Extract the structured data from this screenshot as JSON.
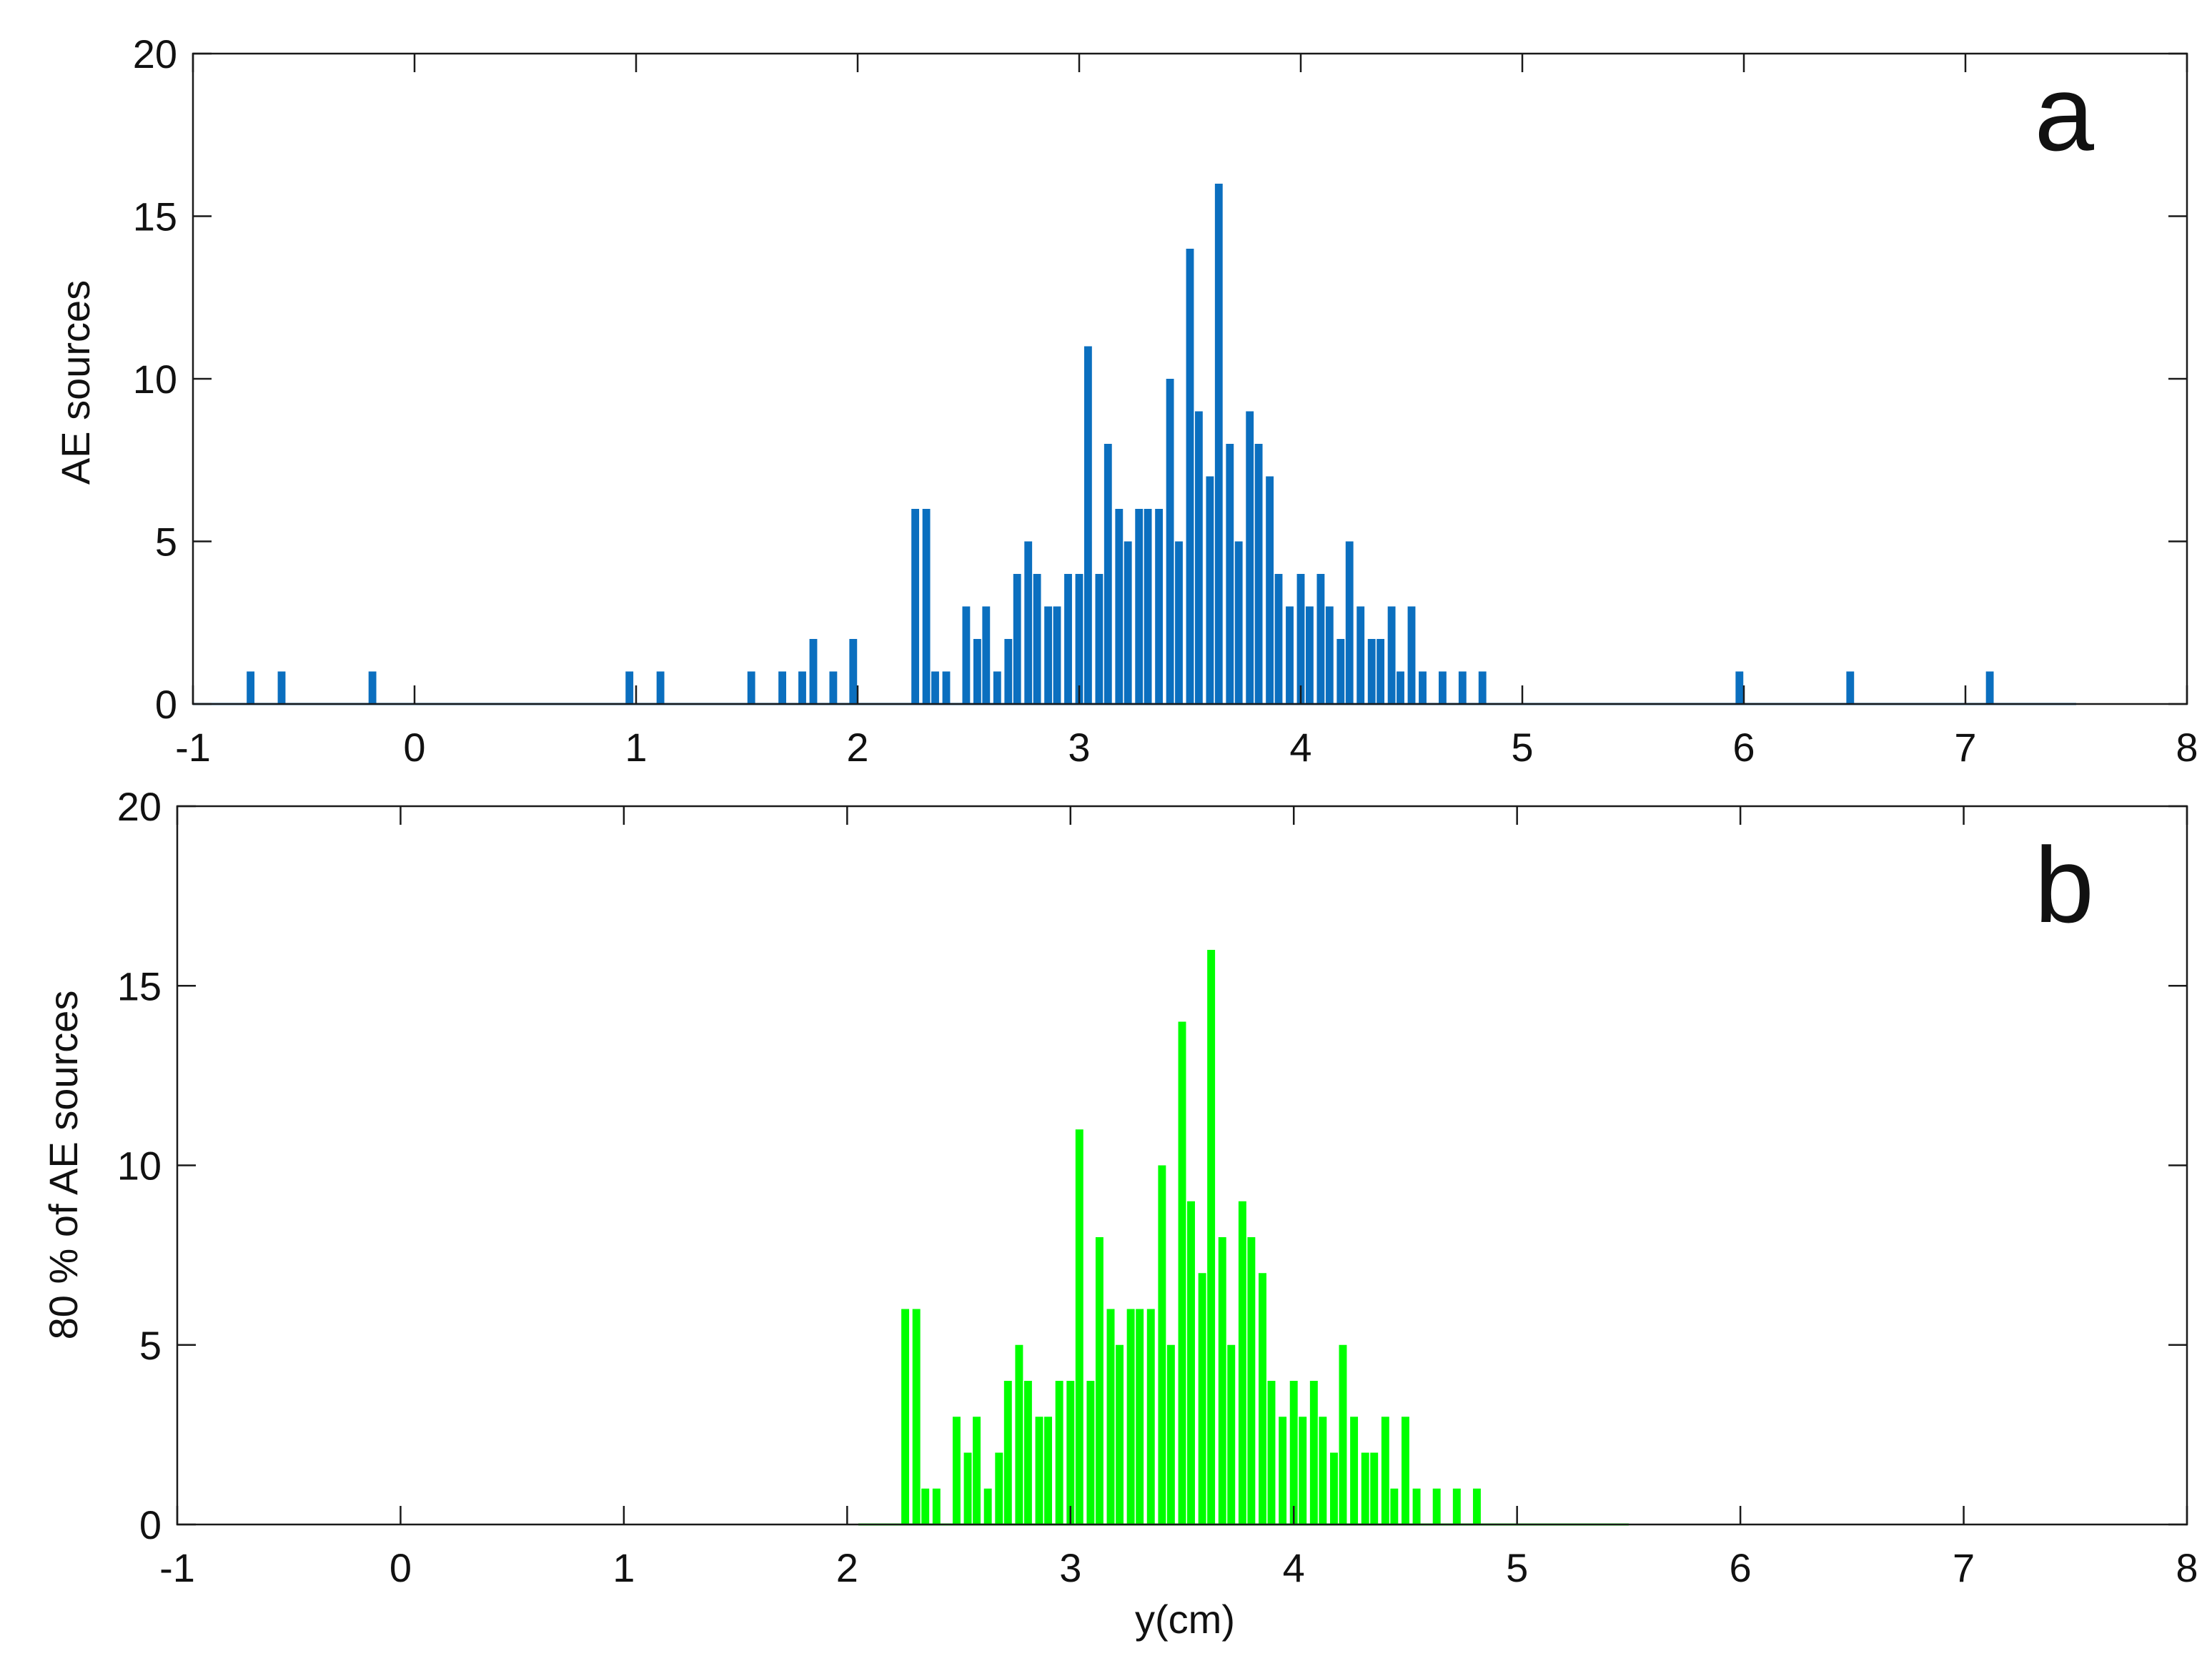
{
  "colors": {
    "panel_a_bars": "#0b6fbf",
    "panel_b_bars": "#00ff00",
    "axes": "#1a1a1a"
  },
  "chart_data": [
    {
      "type": "bar",
      "panel_label": "a",
      "xlabel": "",
      "ylabel": "AE sources",
      "xlim": [
        -1,
        8
      ],
      "ylim": [
        0,
        20
      ],
      "xticks": [
        "-1",
        "0",
        "1",
        "2",
        "3",
        "4",
        "5",
        "6",
        "7",
        "8"
      ],
      "yticks": [
        "0",
        "5",
        "10",
        "15",
        "20"
      ],
      "grid": false,
      "bar_width": 0.035,
      "baseline_range": [
        -1,
        7.5
      ],
      "x": [
        -0.74,
        -0.6,
        -0.19,
        0.97,
        1.11,
        1.52,
        1.66,
        1.75,
        1.8,
        1.89,
        1.98,
        2.26,
        2.31,
        2.35,
        2.4,
        2.49,
        2.54,
        2.58,
        2.63,
        2.68,
        2.72,
        2.77,
        2.81,
        2.86,
        2.9,
        2.95,
        3.0,
        3.04,
        3.09,
        3.13,
        3.18,
        3.22,
        3.27,
        3.31,
        3.36,
        3.41,
        3.45,
        3.5,
        3.54,
        3.59,
        3.63,
        3.68,
        3.72,
        3.77,
        3.81,
        3.86,
        3.9,
        3.95,
        4.0,
        4.04,
        4.09,
        4.13,
        4.18,
        4.22,
        4.27,
        4.32,
        4.36,
        4.41,
        4.45,
        4.5,
        4.55,
        4.64,
        4.73,
        4.82,
        5.98,
        6.48,
        7.11
      ],
      "values": [
        1,
        1,
        1,
        1,
        1,
        1,
        1,
        1,
        2,
        1,
        2,
        6,
        6,
        1,
        1,
        3,
        2,
        3,
        1,
        2,
        4,
        5,
        4,
        3,
        3,
        4,
        4,
        11,
        4,
        8,
        6,
        5,
        6,
        6,
        6,
        10,
        5,
        14,
        9,
        7,
        16,
        8,
        5,
        9,
        8,
        7,
        4,
        3,
        4,
        3,
        4,
        3,
        2,
        5,
        3,
        2,
        2,
        3,
        1,
        3,
        1,
        1,
        1,
        1,
        1,
        1,
        1
      ]
    },
    {
      "type": "bar",
      "panel_label": "b",
      "xlabel": "y(cm)",
      "ylabel": "80 % of AE sources",
      "xlim": [
        -1,
        8
      ],
      "ylim": [
        0,
        20
      ],
      "xticks": [
        "-1",
        "0",
        "1",
        "2",
        "3",
        "4",
        "5",
        "6",
        "7",
        "8"
      ],
      "yticks": [
        "0",
        "5",
        "10",
        "15",
        "20"
      ],
      "grid": false,
      "bar_width": 0.035,
      "baseline_range": [
        2.05,
        5.5
      ],
      "x": [
        2.26,
        2.31,
        2.35,
        2.4,
        2.49,
        2.54,
        2.58,
        2.63,
        2.68,
        2.72,
        2.77,
        2.81,
        2.86,
        2.9,
        2.95,
        3.0,
        3.04,
        3.09,
        3.13,
        3.18,
        3.22,
        3.27,
        3.31,
        3.36,
        3.41,
        3.45,
        3.5,
        3.54,
        3.59,
        3.63,
        3.68,
        3.72,
        3.77,
        3.81,
        3.86,
        3.9,
        3.95,
        4.0,
        4.04,
        4.09,
        4.13,
        4.18,
        4.22,
        4.27,
        4.32,
        4.36,
        4.41,
        4.45,
        4.5,
        4.55,
        4.64,
        4.73,
        4.82
      ],
      "values": [
        6,
        6,
        1,
        1,
        3,
        2,
        3,
        1,
        2,
        4,
        5,
        4,
        3,
        3,
        4,
        4,
        11,
        4,
        8,
        6,
        5,
        6,
        6,
        6,
        10,
        5,
        14,
        9,
        7,
        16,
        8,
        5,
        9,
        8,
        7,
        4,
        3,
        4,
        3,
        4,
        3,
        2,
        5,
        3,
        2,
        2,
        3,
        1,
        3,
        1,
        1,
        1,
        1
      ]
    }
  ]
}
